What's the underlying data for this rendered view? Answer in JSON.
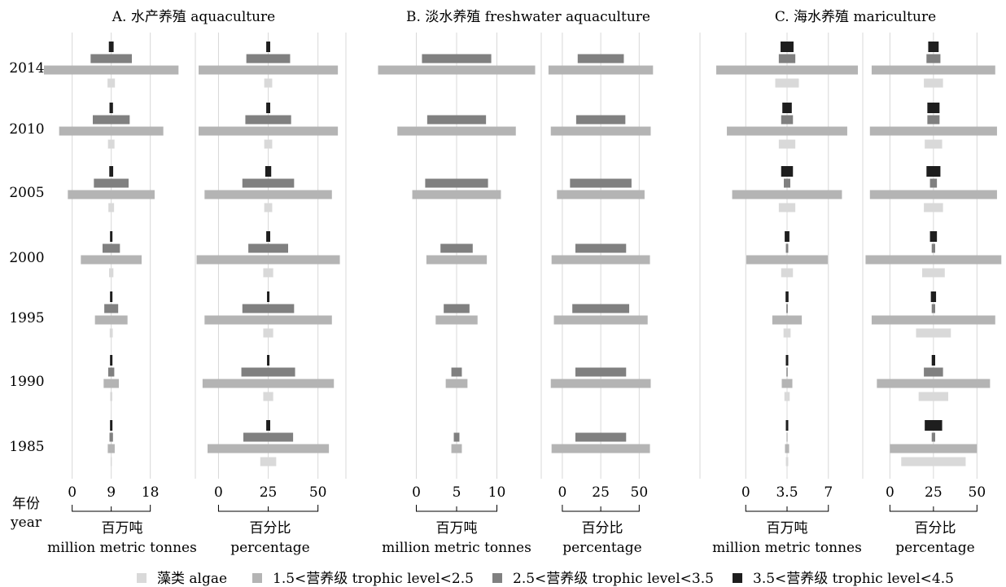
{
  "chart_data": {
    "type": "bar",
    "description_type": "population-pyramid style stacked trophic-level bars",
    "years": [
      "2014",
      "2010",
      "2005",
      "2000",
      "1995",
      "1990",
      "1985"
    ],
    "year_label": "年份",
    "year_label_en": "year",
    "levels": [
      {
        "key": "algae",
        "label": "藻类 algae",
        "color": "#d9d9d9"
      },
      {
        "key": "tl1",
        "label": "1.5<营养级 trophic level<2.5",
        "color": "#b4b4b4"
      },
      {
        "key": "tl2",
        "label": "2.5<营养级 trophic level<3.5",
        "color": "#808080"
      },
      {
        "key": "tl3",
        "label": "3.5<营养级 trophic level<4.5",
        "color": "#1e1e1e"
      }
    ],
    "groups": [
      {
        "title": "A. 水产养殖 aquaculture",
        "panels": [
          {
            "unit_cn": "百万吨",
            "unit_en": "million metric tonnes",
            "ticks": [
              0,
              9,
              18
            ],
            "tick_labels": [
              "0",
              "9",
              "18"
            ],
            "xlim": [
              -5,
              28
            ],
            "center": 9,
            "values": {
              "algae": [
                1.7,
                1.5,
                1.3,
                1.0,
                0.7,
                0.5,
                0.3
              ],
              "tl1": [
                31.0,
                24.0,
                20.0,
                14.0,
                7.5,
                3.5,
                1.6
              ],
              "tl2": [
                9.5,
                8.5,
                8.0,
                4.0,
                3.2,
                1.4,
                0.8
              ],
              "tl3": [
                1.1,
                0.8,
                0.9,
                0.5,
                0.4,
                0.3,
                0.2
              ]
            }
          },
          {
            "unit_cn": "百分比",
            "unit_en": "percentage",
            "ticks": [
              0,
              25,
              50
            ],
            "tick_labels": [
              "0",
              "25",
              "50"
            ],
            "xlim": [
              -10,
              62
            ],
            "center": 25,
            "values": {
              "algae": [
                4,
                4,
                4,
                5,
                5,
                5,
                8
              ],
              "tl1": [
                70,
                70,
                64,
                72,
                64,
                66,
                61
              ],
              "tl2": [
                22,
                23,
                26,
                20,
                26,
                27,
                25
              ],
              "tl3": [
                2,
                2,
                3,
                2,
                1,
                1,
                2
              ]
            }
          }
        ]
      },
      {
        "title": "B. 淡水养殖 freshwater aquaculture",
        "panels": [
          {
            "unit_cn": "百万吨",
            "unit_en": "million metric tonnes",
            "ticks": [
              0,
              5,
              10
            ],
            "tick_labels": [
              "0",
              "5",
              "10"
            ],
            "xlim": [
              -5,
              15
            ],
            "center": 5,
            "values": {
              "algae": [
                0,
                0,
                0,
                0,
                0,
                0,
                0
              ],
              "tl1": [
                19.5,
                14.7,
                11.0,
                7.5,
                5.2,
                2.7,
                1.3
              ],
              "tl2": [
                8.6,
                7.3,
                7.8,
                4.0,
                3.2,
                1.3,
                0.7
              ],
              "tl3": [
                0,
                0,
                0,
                0,
                0,
                0,
                0
              ]
            }
          },
          {
            "unit_cn": "百分比",
            "unit_en": "percentage",
            "ticks": [
              0,
              25,
              50
            ],
            "tick_labels": [
              "0",
              "25",
              "50"
            ],
            "xlim": [
              -10,
              62
            ],
            "center": 25,
            "values": {
              "algae": [
                0,
                0,
                0,
                0,
                0,
                0,
                0
              ],
              "tl1": [
                68,
                65,
                57,
                64,
                61,
                65,
                64
              ],
              "tl2": [
                30,
                32,
                40,
                33,
                37,
                33,
                33
              ],
              "tl3": [
                0,
                0,
                0,
                0,
                0,
                0,
                0
              ]
            }
          }
        ]
      },
      {
        "title": "C. 海水养殖 mariculture",
        "panels": [
          {
            "unit_cn": "百万吨",
            "unit_en": "million metric tonnes",
            "ticks": [
              0,
              3.5,
              7
            ],
            "tick_labels": [
              "0",
              "3.5",
              "7"
            ],
            "xlim": [
              -2.5,
              9.5
            ],
            "center": 3.5,
            "values": {
              "algae": [
                2.0,
                1.4,
                1.4,
                1.0,
                0.6,
                0.45,
                0.2
              ],
              "tl1": [
                12.0,
                10.2,
                9.3,
                6.9,
                2.5,
                0.9,
                0.35
              ],
              "tl2": [
                1.4,
                1.0,
                0.55,
                0.2,
                0.12,
                0.1,
                0.05
              ],
              "tl3": [
                1.1,
                0.8,
                1.0,
                0.4,
                0.25,
                0.15,
                0.1
              ]
            }
          },
          {
            "unit_cn": "百分比",
            "unit_en": "percentage",
            "ticks": [
              0,
              25,
              50
            ],
            "tick_labels": [
              "0",
              "25",
              "50"
            ],
            "xlim": [
              -10,
              62
            ],
            "center": 25,
            "values": {
              "algae": [
                11,
                10,
                11,
                13,
                20,
                17,
                37
              ],
              "tl1": [
                71,
                73,
                73,
                78,
                71,
                65,
                50
              ],
              "tl2": [
                8,
                7,
                4,
                2,
                2,
                11,
                2
              ],
              "tl3": [
                6,
                7,
                8,
                4,
                3,
                2,
                10
              ]
            }
          }
        ]
      }
    ]
  }
}
